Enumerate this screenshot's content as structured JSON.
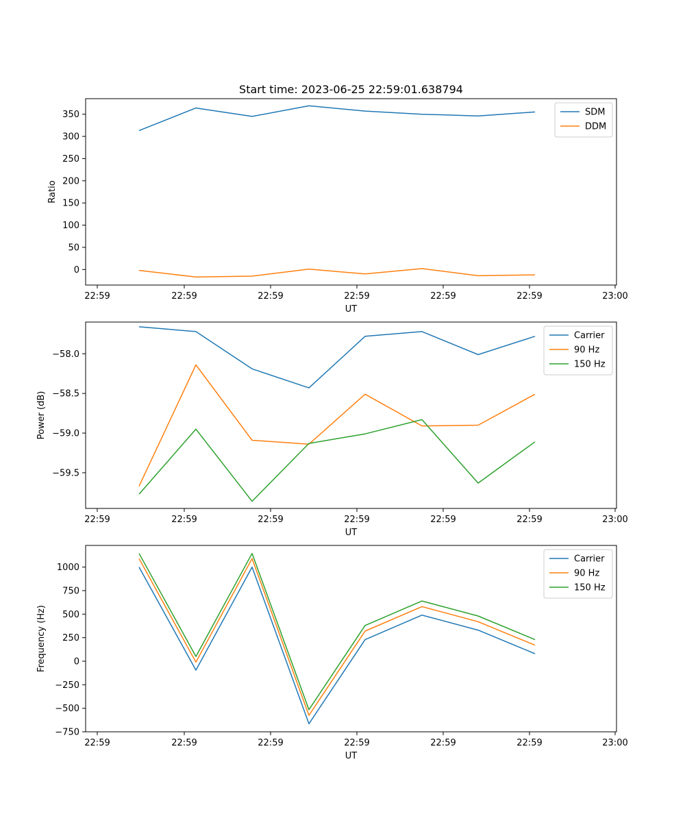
{
  "figure_title": "Start time: 2023-06-25 22:59:01.638794",
  "chart_data": [
    {
      "type": "line",
      "title": "Start time: 2023-06-25 22:59:01.638794",
      "xlabel": "UT",
      "ylabel": "Ratio",
      "x_tick_labels": [
        "22:59",
        "22:59",
        "22:59",
        "22:59",
        "22:59",
        "22:59",
        "23:00"
      ],
      "y_ticks": [
        0,
        50,
        100,
        150,
        200,
        250,
        300,
        350
      ],
      "ylim": [
        -35,
        385
      ],
      "legend_position": "top-right",
      "grid": false,
      "series": [
        {
          "name": "SDM",
          "color": "#1f77b4",
          "values": [
            313,
            364,
            345,
            369,
            357,
            350,
            346,
            355
          ]
        },
        {
          "name": "DDM",
          "color": "#ff7f0e",
          "values": [
            -2,
            -17,
            -15,
            1,
            -10,
            2,
            -14,
            -12
          ]
        }
      ]
    },
    {
      "type": "line",
      "xlabel": "UT",
      "ylabel": "Power (dB)",
      "x_tick_labels": [
        "22:59",
        "22:59",
        "22:59",
        "22:59",
        "22:59",
        "22:59",
        "23:00"
      ],
      "y_ticks": [
        -58.0,
        -58.5,
        -59.0,
        -59.5
      ],
      "y_tick_labels": [
        "−58.0",
        "−58.5",
        "−59.0",
        "−59.5"
      ],
      "ylim": [
        -59.95,
        -57.6
      ],
      "legend_position": "top-right",
      "grid": false,
      "series": [
        {
          "name": "Carrier",
          "color": "#1f77b4",
          "values": [
            -57.66,
            -57.72,
            -58.19,
            -58.43,
            -57.78,
            -57.72,
            -58.01,
            -57.78
          ]
        },
        {
          "name": "90 Hz",
          "color": "#ff7f0e",
          "values": [
            -59.67,
            -58.14,
            -59.09,
            -59.14,
            -58.51,
            -58.91,
            -58.9,
            -58.51
          ]
        },
        {
          "name": "150 Hz",
          "color": "#2ca02c",
          "values": [
            -59.77,
            -58.95,
            -59.86,
            -59.13,
            -59.01,
            -58.83,
            -59.63,
            -59.11
          ]
        }
      ]
    },
    {
      "type": "line",
      "xlabel": "UT",
      "ylabel": "Frequency (Hz)",
      "x_tick_labels": [
        "22:59",
        "22:59",
        "22:59",
        "22:59",
        "22:59",
        "22:59",
        "23:00"
      ],
      "y_ticks": [
        1000,
        750,
        500,
        250,
        0,
        -250,
        -500,
        -750
      ],
      "y_tick_labels": [
        "1000",
        "750",
        "500",
        "250",
        "0",
        "−250",
        "−500",
        "−750"
      ],
      "ylim": [
        -750,
        1230
      ],
      "legend_position": "top-right",
      "grid": false,
      "series": [
        {
          "name": "Carrier",
          "color": "#1f77b4",
          "values": [
            1000,
            -95,
            1000,
            -665,
            230,
            490,
            330,
            80
          ]
        },
        {
          "name": "90 Hz",
          "color": "#ff7f0e",
          "values": [
            1090,
            -10,
            1090,
            -575,
            320,
            580,
            420,
            170
          ]
        },
        {
          "name": "150 Hz",
          "color": "#2ca02c",
          "values": [
            1145,
            50,
            1145,
            -515,
            380,
            640,
            480,
            230
          ]
        }
      ]
    }
  ]
}
